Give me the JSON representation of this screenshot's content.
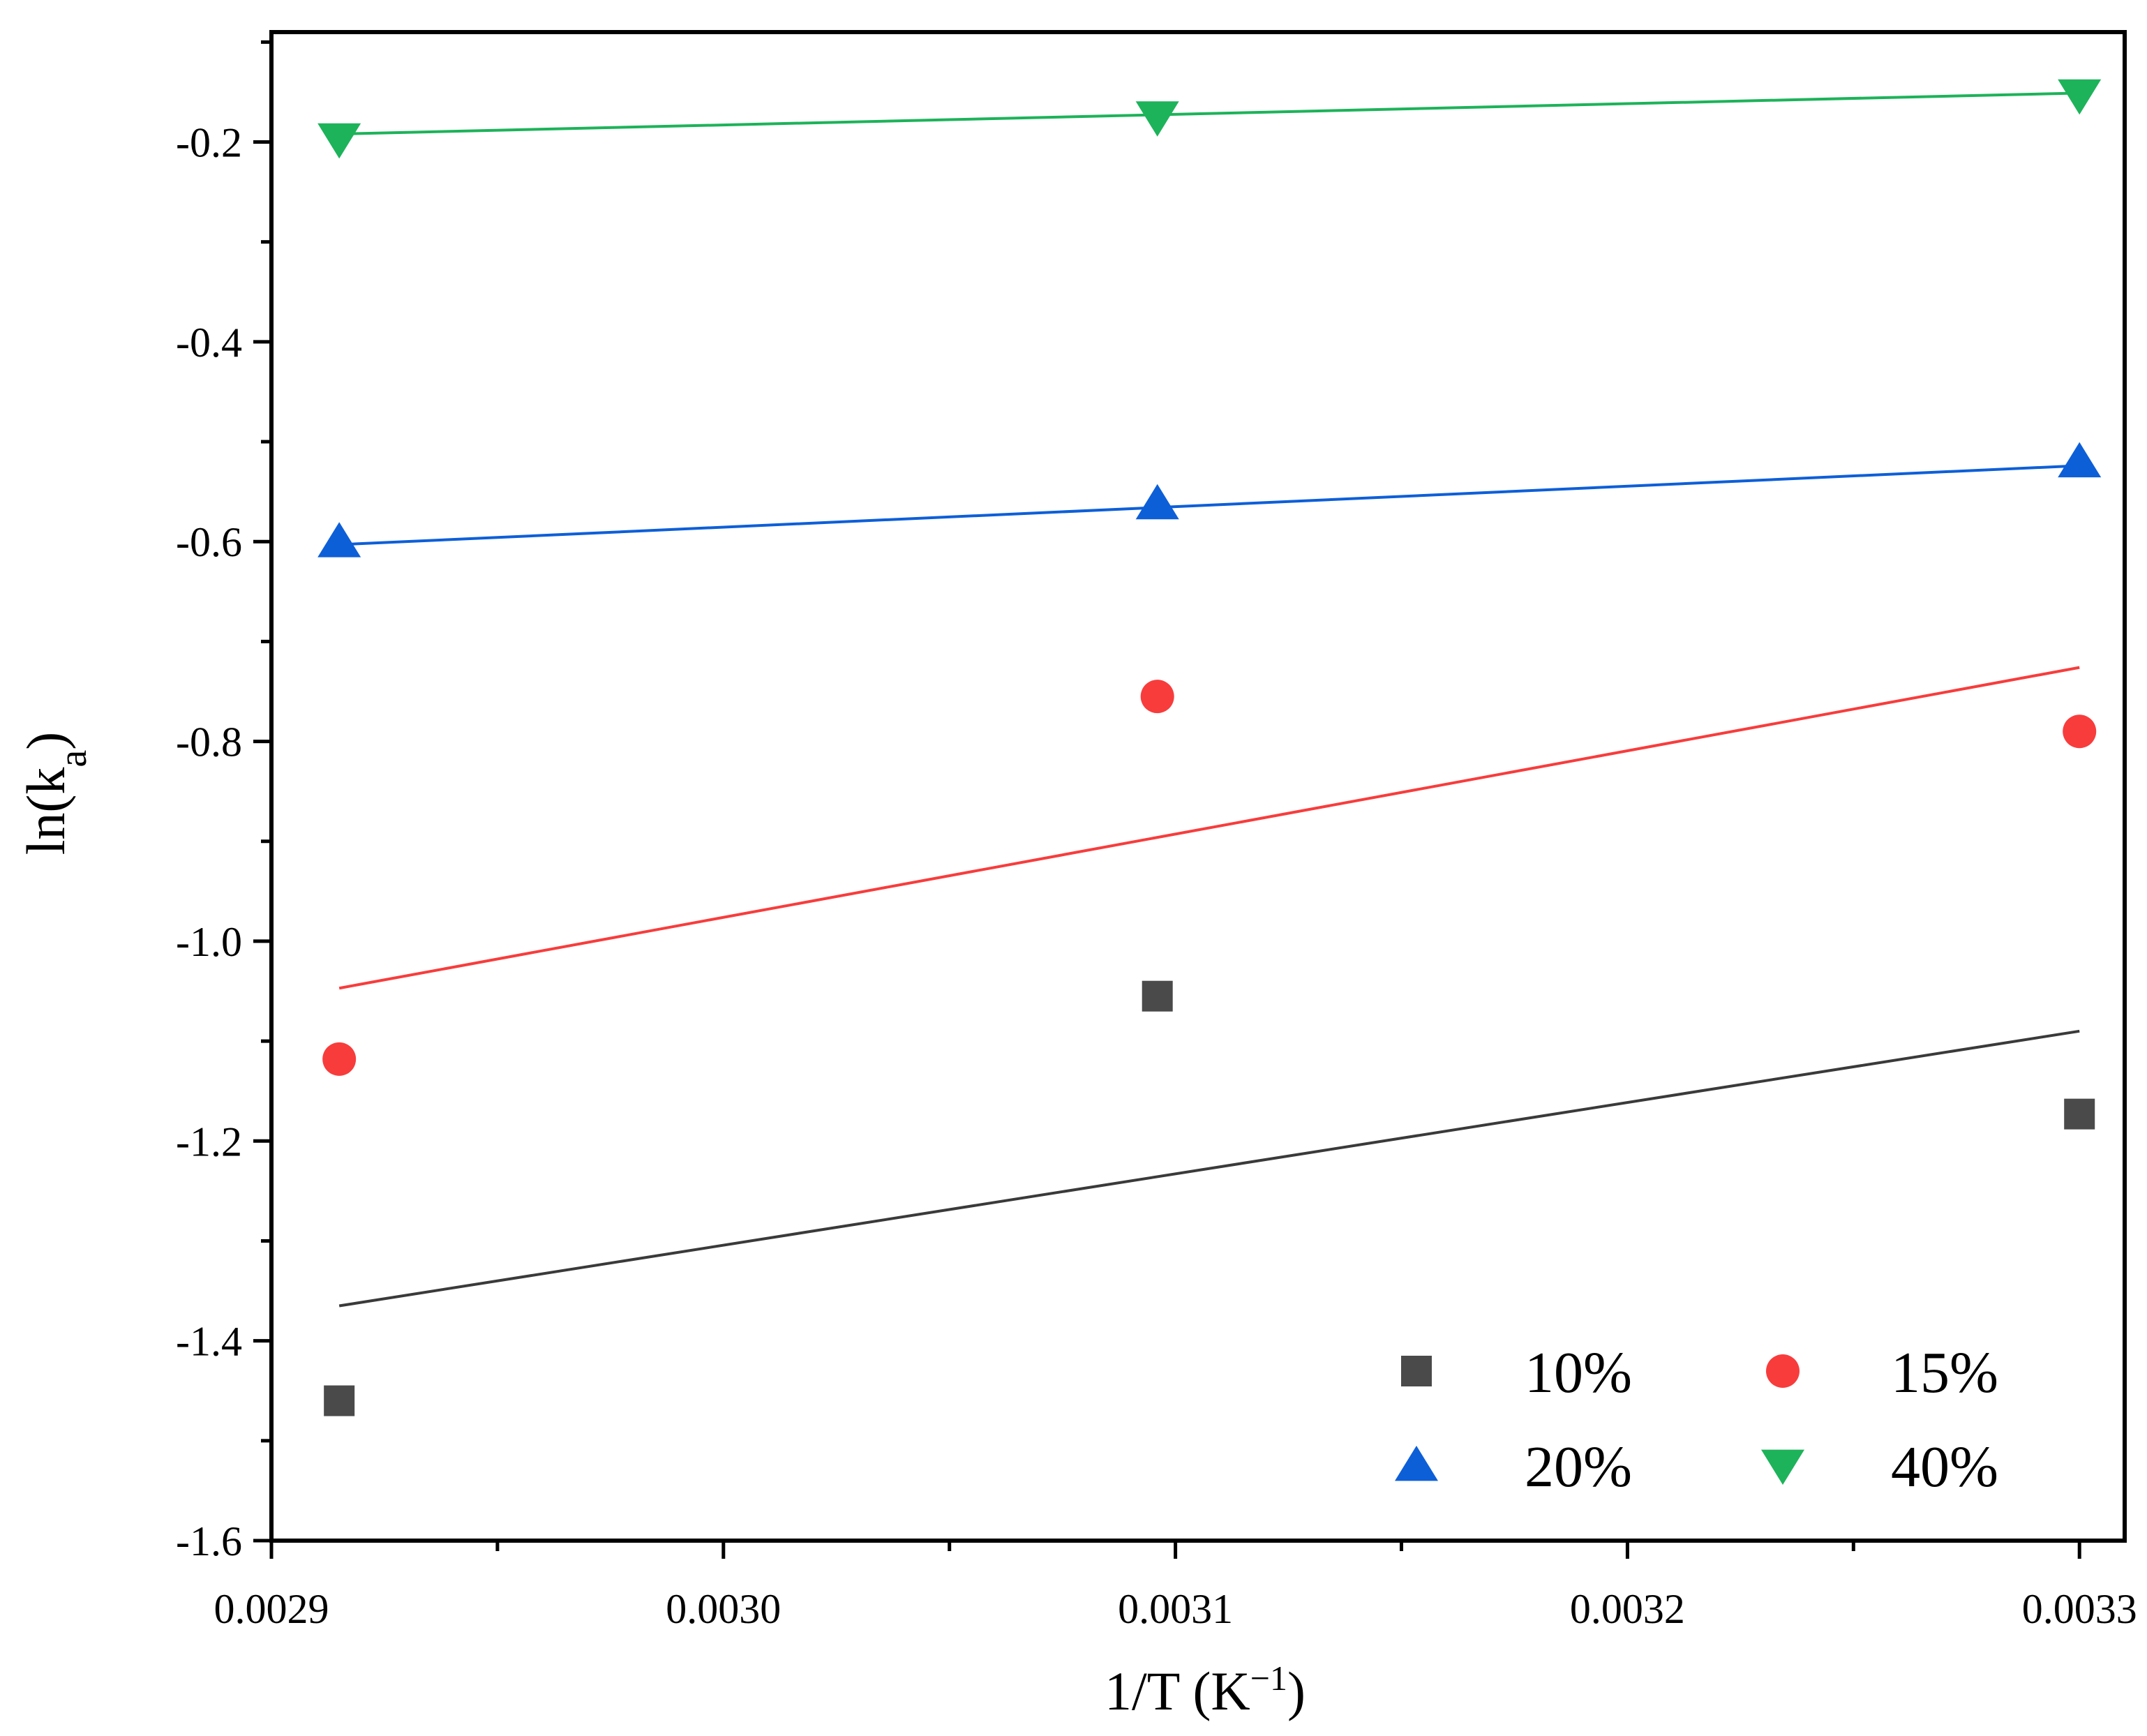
{
  "chart_data": {
    "type": "scatter",
    "title": "",
    "xlabel": "1/T (K⁻¹)",
    "xlabel_main": "1/T (K",
    "xlabel_sup": "−1",
    "xlabel_close": ")",
    "ylabel": "ln(k_a)",
    "ylabel_main": "ln(k",
    "ylabel_sub": "a",
    "ylabel_close": ")",
    "xlim": [
      0.0029,
      0.00331
    ],
    "ylim": [
      -1.6,
      -0.09
    ],
    "x_ticks": [
      0.0029,
      0.003,
      0.0031,
      0.0032,
      0.0033
    ],
    "x_tick_labels": [
      "0.0029",
      "0.0030",
      "0.0031",
      "0.0032",
      "0.0033"
    ],
    "x_minor_ticks": [
      0.00295,
      0.00305,
      0.00315,
      0.00325
    ],
    "y_ticks": [
      -1.6,
      -1.4,
      -1.2,
      -1.0,
      -0.8,
      -0.6,
      -0.4,
      -0.2
    ],
    "y_tick_labels": [
      "-1.6",
      "-1.4",
      "-1.2",
      "-1.0",
      "-0.8",
      "-0.6",
      "-0.4",
      "-0.2"
    ],
    "y_minor_ticks": [
      -1.5,
      -1.3,
      -1.1,
      -0.9,
      -0.7,
      -0.5,
      -0.3,
      -0.1
    ],
    "grid": false,
    "legend_position": "bottom-right",
    "series": [
      {
        "name": "10%",
        "marker": "square",
        "color": "#4a4a4a",
        "line_color": "#3a3a3a",
        "x": [
          0.002915,
          0.003096,
          0.0033
        ],
        "y": [
          -1.46,
          -1.055,
          -1.173
        ],
        "fit": {
          "x": [
            0.002915,
            0.0033
          ],
          "y": [
            -1.365,
            -1.09
          ]
        }
      },
      {
        "name": "15%",
        "marker": "circle",
        "color": "#f83c3c",
        "line_color": "#f83c3c",
        "x": [
          0.002915,
          0.003096,
          0.0033
        ],
        "y": [
          -1.118,
          -0.755,
          -0.79
        ],
        "fit": {
          "x": [
            0.002915,
            0.0033
          ],
          "y": [
            -1.047,
            -0.726
          ]
        }
      },
      {
        "name": "20%",
        "marker": "triangle-up",
        "color": "#0d5fd8",
        "line_color": "#0d5fd8",
        "x": [
          0.002915,
          0.003096,
          0.0033
        ],
        "y": [
          -0.6,
          -0.562,
          -0.52
        ],
        "fit": {
          "x": [
            0.002915,
            0.0033
          ],
          "y": [
            -0.603,
            -0.524
          ]
        }
      },
      {
        "name": "40%",
        "marker": "triangle-down",
        "color": "#1db35a",
        "line_color": "#1db35a",
        "x": [
          0.002915,
          0.003096,
          0.0033
        ],
        "y": [
          -0.197,
          -0.175,
          -0.153
        ],
        "fit": {
          "x": [
            0.002915,
            0.0033
          ],
          "y": [
            -0.192,
            -0.151
          ]
        }
      }
    ]
  }
}
